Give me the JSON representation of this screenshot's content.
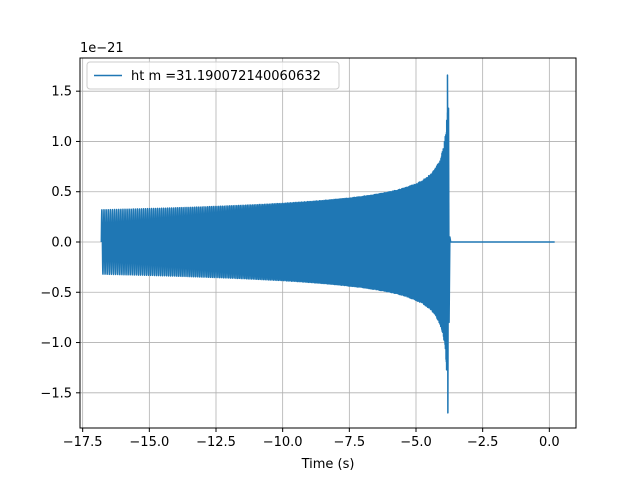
{
  "chart_data": {
    "type": "line",
    "xlabel": "Time (s)",
    "ylabel": "",
    "offset_label": "1e−21",
    "xlim": [
      -17.6,
      1.0
    ],
    "ylim": [
      -1.85,
      1.83
    ],
    "xticks": [
      {
        "v": -17.5,
        "label": "−17.5"
      },
      {
        "v": -15.0,
        "label": "−15.0"
      },
      {
        "v": -12.5,
        "label": "−12.5"
      },
      {
        "v": -10.0,
        "label": "−10.0"
      },
      {
        "v": -7.5,
        "label": "−7.5"
      },
      {
        "v": -5.0,
        "label": "−5.0"
      },
      {
        "v": -2.5,
        "label": "−2.5"
      },
      {
        "v": 0.0,
        "label": "0.0"
      }
    ],
    "yticks": [
      {
        "v": 1.5,
        "label": "1.5"
      },
      {
        "v": 1.0,
        "label": "1.0"
      },
      {
        "v": 0.5,
        "label": "0.5"
      },
      {
        "v": 0.0,
        "label": "0.0"
      },
      {
        "v": -0.5,
        "label": "−0.5"
      },
      {
        "v": -1.0,
        "label": "−1.0"
      },
      {
        "v": -1.5,
        "label": "−1.5"
      }
    ],
    "grid": true,
    "legend_position": "upper-left",
    "series": [
      {
        "name": "ht m =31.190072140060632",
        "color": "#1f77b4",
        "t_start": -16.8,
        "t_merger": -3.8,
        "t_end": 0.2,
        "amplitude_start": 0.32,
        "peak_max": 1.66,
        "peak_min": -1.7,
        "cycles": 260
      }
    ]
  }
}
